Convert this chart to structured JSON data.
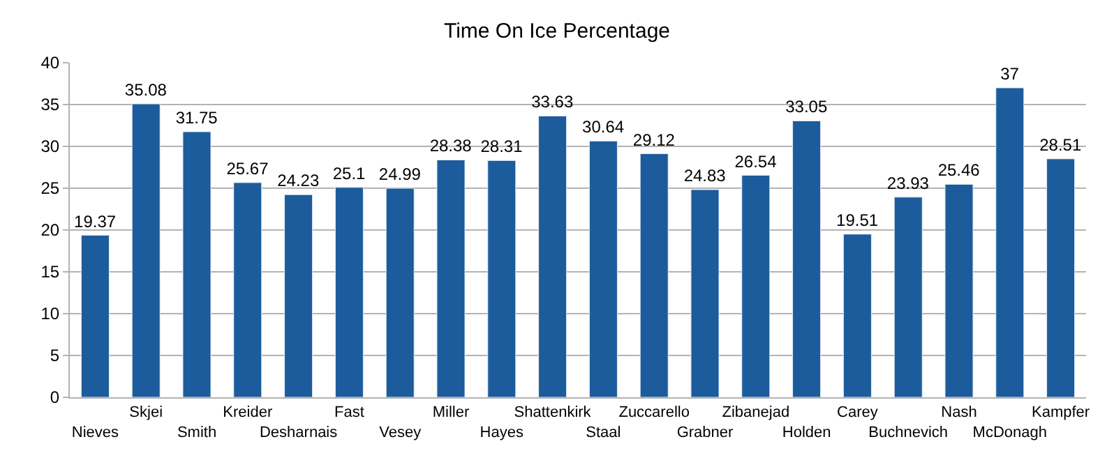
{
  "chart_data": {
    "type": "bar",
    "title": "Time On Ice Percentage",
    "categories": [
      "Nieves",
      "Skjei",
      "Smith",
      "Kreider",
      "Desharnais",
      "Fast",
      "Vesey",
      "Miller",
      "Hayes",
      "Shattenkirk",
      "Staal",
      "Zuccarello",
      "Grabner",
      "Zibanejad",
      "Holden",
      "Carey",
      "Buchnevich",
      "Nash",
      "McDonagh",
      "Kampfer"
    ],
    "values": [
      19.37,
      35.08,
      31.75,
      25.67,
      24.23,
      25.1,
      24.99,
      28.38,
      28.31,
      33.63,
      30.64,
      29.12,
      24.83,
      26.54,
      33.05,
      19.51,
      23.93,
      25.46,
      37,
      28.51
    ],
    "color": "#1c5c9c",
    "ylim": [
      0,
      40
    ],
    "yticks": [
      0,
      5,
      10,
      15,
      20,
      25,
      30,
      35,
      40
    ],
    "grid": "y",
    "data_labels": true
  }
}
